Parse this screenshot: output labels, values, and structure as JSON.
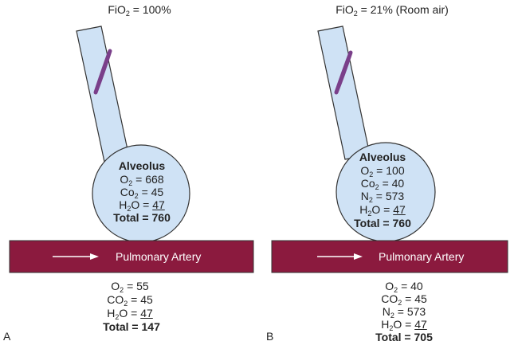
{
  "panels": [
    {
      "letter": "A",
      "fio2_prefix": "FiO",
      "fio2_sub": "2",
      "fio2_suffix": " = 100%",
      "alveolus": {
        "title": "Alveolus",
        "o2_base": "O",
        "o2_sub": "2",
        "o2_eq": " = 668",
        "co2_base": "Co",
        "co2_sub": "2",
        "co2_eq": " = 45",
        "h2o_base": "H",
        "h2o_sub": "2",
        "h2o_mid": "O = ",
        "h2o_val": "47",
        "total": "Total = 760"
      },
      "artery_label": "Pulmonary Artery",
      "blood": {
        "o2_base": "O",
        "o2_sub": "2",
        "o2_eq": " = 55",
        "co2_base": "CO",
        "co2_sub": "2",
        "co2_eq": " = 45",
        "h2o_base": "H",
        "h2o_sub": "2",
        "h2o_mid": "O = ",
        "h2o_val": "47",
        "total": "Total = 147"
      }
    },
    {
      "letter": "B",
      "fio2_prefix": "FiO",
      "fio2_sub": "2",
      "fio2_suffix": " = 21% (Room air)",
      "alveolus": {
        "title": "Alveolus",
        "o2_base": "O",
        "o2_sub": "2",
        "o2_eq": " = 100",
        "co2_base": "Co",
        "co2_sub": "2",
        "co2_eq": " = 40",
        "n2_base": "N",
        "n2_sub": "2",
        "n2_eq": " = 573",
        "h2o_base": "H",
        "h2o_sub": "2",
        "h2o_mid": "O = ",
        "h2o_val": "47",
        "total": "Total = 760"
      },
      "artery_label": "Pulmonary Artery",
      "blood": {
        "o2_base": "O",
        "o2_sub": "2",
        "o2_eq": " = 40",
        "co2_base": "CO",
        "co2_sub": "2",
        "co2_eq": " = 45",
        "n2_base": "N",
        "n2_sub": "2",
        "n2_eq": " = 573",
        "h2o_base": "H",
        "h2o_sub": "2",
        "h2o_mid": "O = ",
        "h2o_val": "47",
        "total": "Total = 705"
      }
    }
  ],
  "colors": {
    "alveolus_fill": "#cfe2f5",
    "outline": "#333333",
    "artery_fill": "#8b1a3e",
    "valve_fill": "#7a3f8a",
    "arrow": "#ffffff"
  }
}
